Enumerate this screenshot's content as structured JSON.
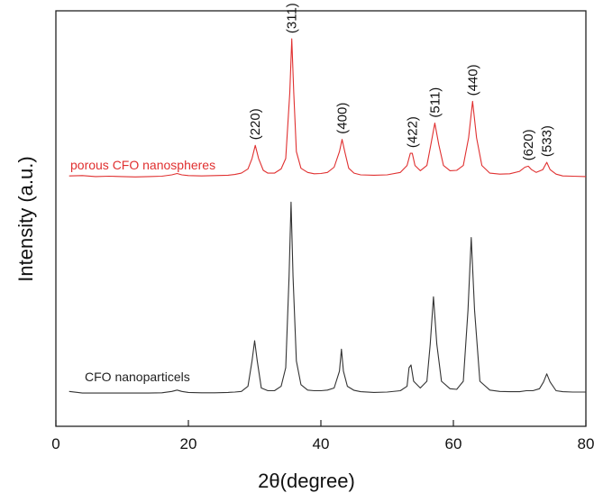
{
  "chart_data": {
    "type": "line",
    "xlabel": "2θ(degree)",
    "ylabel": "Intensity (a.u.)",
    "xlim": [
      0,
      80
    ],
    "xticks": [
      "0",
      "20",
      "40",
      "60",
      "80"
    ],
    "y_ticks_shown": false,
    "grid": false,
    "legend": "none",
    "series": [
      {
        "name": "porous CFO nanospheres",
        "color": "#e03030",
        "x": [
          2,
          4,
          6,
          8,
          10,
          12,
          14,
          16,
          17.5,
          18.3,
          19,
          20,
          22,
          24,
          26,
          27,
          28,
          29,
          29.6,
          30.1,
          30.6,
          31.3,
          32,
          33,
          34,
          34.7,
          35.3,
          35.6,
          35.9,
          36.3,
          37,
          38,
          39,
          40,
          41,
          42,
          42.8,
          43.2,
          43.6,
          44.2,
          45,
          46,
          48,
          50,
          52,
          53,
          53.5,
          53.8,
          54.2,
          55,
          56,
          56.6,
          57.2,
          57.8,
          58.5,
          59.5,
          60.5,
          61.5,
          62.3,
          62.9,
          63.5,
          64.3,
          65.5,
          67,
          68.5,
          70,
          70.8,
          71.3,
          71.8,
          72.5,
          73.5,
          74.1,
          74.6,
          75.5,
          76.5,
          78,
          80
        ],
        "y": [
          1.0,
          1.1,
          0.8,
          0.9,
          0.8,
          0.7,
          0.8,
          0.9,
          1.3,
          1.7,
          1.3,
          1.1,
          1.0,
          1.1,
          1.2,
          1.4,
          1.8,
          3.0,
          6.0,
          9.8,
          6.0,
          2.6,
          1.8,
          1.8,
          3.0,
          6.0,
          25.0,
          40.5,
          25.0,
          8.0,
          3.2,
          2.0,
          1.6,
          1.7,
          2.0,
          3.5,
          8.0,
          11.5,
          8.0,
          3.2,
          1.8,
          1.3,
          1.2,
          1.3,
          2.0,
          4.0,
          7.5,
          7.5,
          4.0,
          2.5,
          4.0,
          10.0,
          16.2,
          10.0,
          4.0,
          2.5,
          2.6,
          4.0,
          12.0,
          22.5,
          12.0,
          4.0,
          1.8,
          1.5,
          1.6,
          2.3,
          3.5,
          3.8,
          2.8,
          2.0,
          2.8,
          4.9,
          2.8,
          1.5,
          1.0,
          0.9,
          0.8
        ]
      },
      {
        "name": "CFO nanoparticels",
        "color": "#333333",
        "x": [
          2,
          4,
          6,
          8,
          10,
          12,
          14,
          16,
          17.5,
          18.3,
          19,
          20,
          22,
          24,
          26,
          27,
          28,
          29,
          29.6,
          30.0,
          30.4,
          31,
          32,
          33,
          34,
          34.7,
          35.2,
          35.5,
          35.8,
          36.3,
          37,
          38,
          39,
          40,
          41,
          42,
          42.8,
          43.1,
          43.4,
          44,
          45,
          46,
          48,
          50,
          52,
          53,
          53.3,
          53.6,
          54,
          55,
          56,
          56.5,
          57.0,
          57.5,
          58.2,
          59.5,
          60.5,
          61.5,
          62.2,
          62.7,
          63.2,
          64,
          65.5,
          67,
          68.5,
          70,
          71,
          72,
          73,
          73.6,
          74.1,
          74.6,
          75.5,
          76.5,
          78,
          80
        ],
        "y": [
          1.0,
          0.5,
          0.5,
          0.5,
          0.5,
          0.5,
          0.5,
          0.6,
          1.0,
          1.4,
          1.0,
          0.7,
          0.6,
          0.6,
          0.7,
          0.8,
          1.0,
          2.5,
          10.0,
          16.0,
          10.0,
          2.0,
          1.2,
          1.2,
          2.5,
          8.0,
          35.0,
          57.0,
          35.0,
          10.0,
          3.0,
          1.4,
          1.2,
          1.2,
          1.4,
          2.0,
          7.0,
          13.5,
          7.0,
          2.5,
          1.3,
          0.9,
          0.7,
          0.8,
          1.2,
          2.5,
          8.0,
          8.8,
          4.0,
          2.0,
          4.0,
          15.0,
          29.0,
          15.0,
          4.0,
          1.8,
          1.6,
          4.0,
          25.0,
          46.5,
          25.0,
          4.0,
          1.4,
          1.0,
          0.9,
          0.9,
          1.2,
          1.2,
          1.8,
          3.8,
          6.2,
          3.8,
          1.2,
          0.9,
          0.8,
          0.8
        ]
      }
    ],
    "peak_labels": [
      {
        "text": "(220)",
        "x": 30.1
      },
      {
        "text": "(311)",
        "x": 35.6
      },
      {
        "text": "(400)",
        "x": 43.2
      },
      {
        "text": "(422)",
        "x": 53.8
      },
      {
        "text": "(511)",
        "x": 57.2
      },
      {
        "text": "(440)",
        "x": 62.9
      },
      {
        "text": "(620)",
        "x": 71.3
      },
      {
        "text": "(533)",
        "x": 74.1
      }
    ]
  }
}
